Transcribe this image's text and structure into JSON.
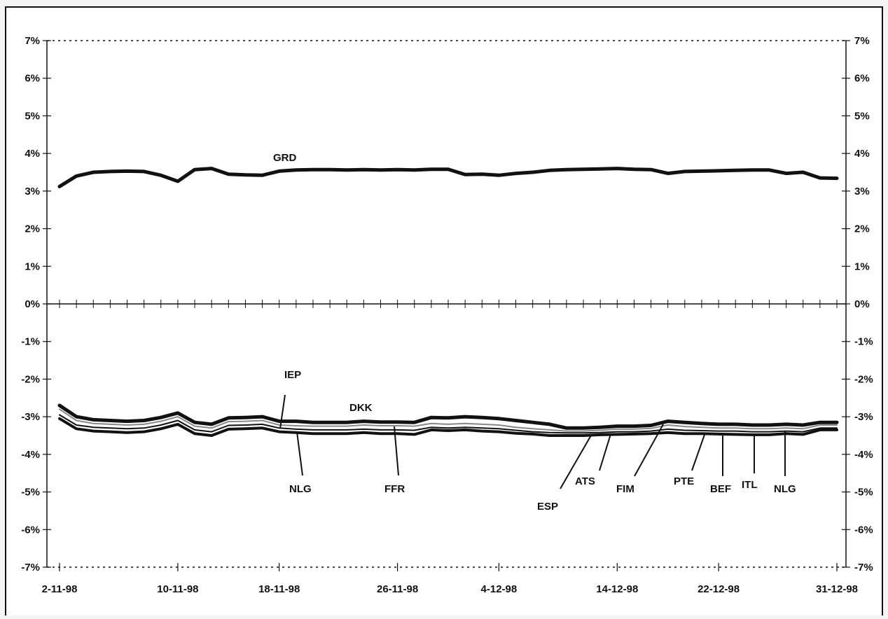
{
  "chart_data": {
    "type": "line",
    "title": "",
    "xlabel": "",
    "ylabel": "",
    "ylim": [
      -0.07,
      0.07
    ],
    "y_ticks": [
      "7%",
      "6%",
      "5%",
      "4%",
      "3%",
      "2%",
      "1%",
      "0%",
      "-1%",
      "-2%",
      "-3%",
      "-4%",
      "-5%",
      "-6%",
      "-7%"
    ],
    "x_tick_labels": [
      "2-11-98",
      "10-11-98",
      "18-11-98",
      "26-11-98",
      "4-12-98",
      "14-12-98",
      "22-12-98",
      "31-12-98"
    ],
    "grid": false,
    "legend": "none",
    "reference_lines": [
      0.07,
      0,
      -0.07
    ],
    "annotations": [
      "GRD",
      "IEP",
      "DKK",
      "NLG",
      "FFR",
      "ESP",
      "ATS",
      "FIM",
      "PTE",
      "BEF",
      "ITL",
      "NLG"
    ],
    "series": [
      {
        "values": [
          3.12,
          3.4,
          3.5,
          3.52,
          3.53,
          3.52,
          3.42,
          3.26,
          3.57,
          3.6,
          3.45,
          3.43,
          3.42,
          3.53,
          3.56,
          3.57,
          3.57,
          3.56,
          3.57,
          3.56,
          3.57,
          3.56,
          3.58,
          3.58,
          3.44,
          3.45,
          3.42,
          3.47,
          3.5,
          3.55,
          3.57,
          3.58,
          3.59,
          3.6,
          3.58,
          3.57,
          3.47,
          3.52,
          3.53,
          3.54,
          3.55,
          3.56,
          3.56,
          3.47,
          3.5,
          3.35,
          3.34
        ]
      },
      {
        "values": [
          -2.7,
          -3.0,
          -3.08,
          -3.1,
          -3.12,
          -3.1,
          -3.02,
          -2.9,
          -3.15,
          -3.2,
          -3.03,
          -3.02,
          -3.0,
          -3.12,
          -3.12,
          -3.15,
          -3.15,
          -3.15,
          -3.12,
          -3.14,
          -3.14,
          -3.15,
          -3.02,
          -3.03,
          -3.0,
          -3.02,
          -3.05,
          -3.1,
          -3.15,
          -3.2,
          -3.3,
          -3.3,
          -3.28,
          -3.25,
          -3.25,
          -3.23,
          -3.12,
          -3.15,
          -3.18,
          -3.2,
          -3.2,
          -3.22,
          -3.22,
          -3.2,
          -3.22,
          -3.15,
          -3.15
        ]
      },
      {
        "values": [
          -2.8,
          -3.1,
          -3.18,
          -3.2,
          -3.22,
          -3.2,
          -3.12,
          -3.0,
          -3.25,
          -3.3,
          -3.13,
          -3.12,
          -3.1,
          -3.22,
          -3.24,
          -3.25,
          -3.25,
          -3.25,
          -3.22,
          -3.24,
          -3.24,
          -3.25,
          -3.18,
          -3.2,
          -3.18,
          -3.2,
          -3.22,
          -3.28,
          -3.32,
          -3.35,
          -3.38,
          -3.38,
          -3.36,
          -3.33,
          -3.33,
          -3.31,
          -3.22,
          -3.26,
          -3.28,
          -3.3,
          -3.3,
          -3.32,
          -3.32,
          -3.3,
          -3.32,
          -3.22,
          -3.22
        ]
      },
      {
        "values": [
          -2.95,
          -3.22,
          -3.28,
          -3.3,
          -3.32,
          -3.3,
          -3.22,
          -3.1,
          -3.35,
          -3.4,
          -3.23,
          -3.22,
          -3.2,
          -3.3,
          -3.33,
          -3.35,
          -3.35,
          -3.35,
          -3.33,
          -3.35,
          -3.35,
          -3.36,
          -3.28,
          -3.3,
          -3.28,
          -3.3,
          -3.32,
          -3.36,
          -3.4,
          -3.42,
          -3.43,
          -3.43,
          -3.42,
          -3.4,
          -3.4,
          -3.38,
          -3.33,
          -3.36,
          -3.37,
          -3.38,
          -3.38,
          -3.4,
          -3.4,
          -3.38,
          -3.4,
          -3.3,
          -3.3
        ]
      },
      {
        "values": [
          -3.05,
          -3.32,
          -3.38,
          -3.4,
          -3.42,
          -3.4,
          -3.32,
          -3.2,
          -3.45,
          -3.5,
          -3.33,
          -3.32,
          -3.3,
          -3.4,
          -3.42,
          -3.45,
          -3.45,
          -3.45,
          -3.42,
          -3.45,
          -3.45,
          -3.47,
          -3.35,
          -3.37,
          -3.35,
          -3.38,
          -3.4,
          -3.44,
          -3.46,
          -3.5,
          -3.5,
          -3.5,
          -3.48,
          -3.47,
          -3.46,
          -3.45,
          -3.42,
          -3.45,
          -3.45,
          -3.46,
          -3.47,
          -3.48,
          -3.48,
          -3.45,
          -3.47,
          -3.35,
          -3.35
        ]
      }
    ]
  }
}
